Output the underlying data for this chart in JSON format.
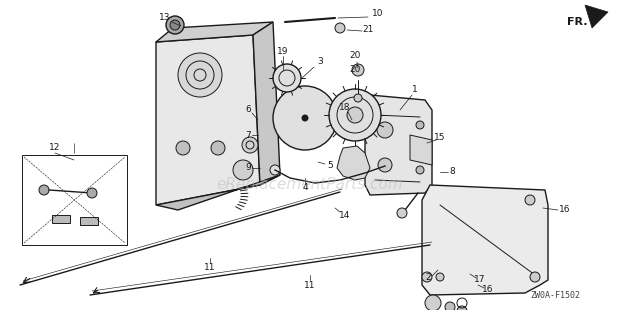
{
  "background_color": "#ffffff",
  "watermark_text": "eReplacementParts.com",
  "watermark_color": "#bbbbbb",
  "watermark_fontsize": 11,
  "watermark_alpha": 0.5,
  "diagram_code": "ZW0A-F1502",
  "line_color": "#1a1a1a",
  "annotation_fontsize": 6.5,
  "fig_w": 6.2,
  "fig_h": 3.1,
  "dpi": 100
}
